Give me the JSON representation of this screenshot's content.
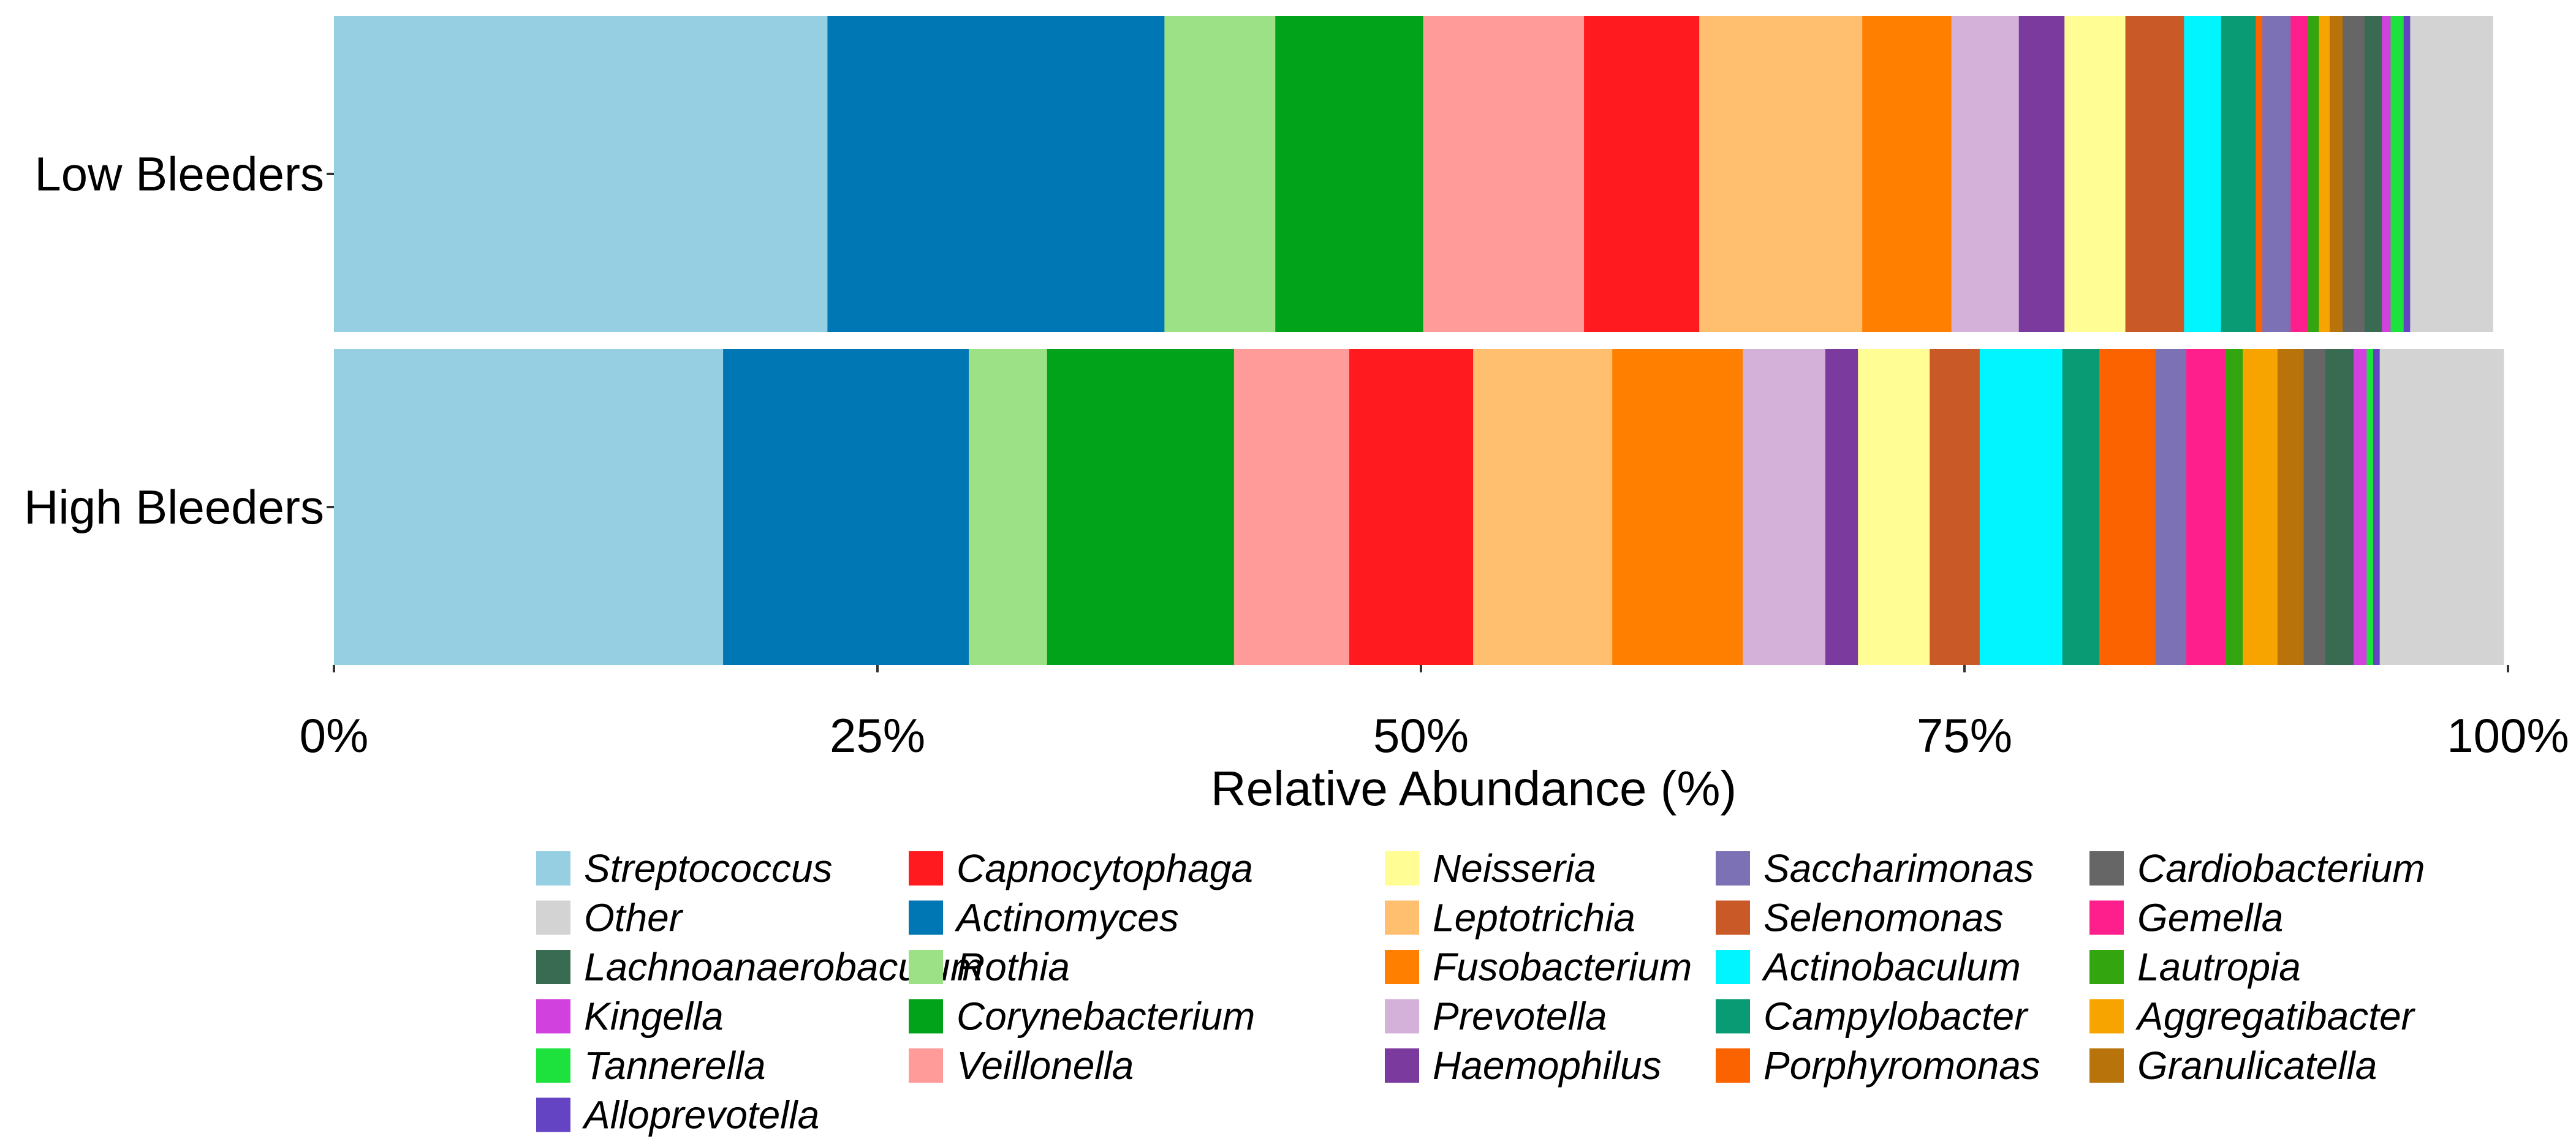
{
  "chart_data": {
    "type": "bar",
    "orientation": "horizontal",
    "stacked": true,
    "title": "",
    "xlabel": "Relative Abundance (%)",
    "ylabel": "",
    "xlim": [
      0,
      100
    ],
    "x_ticks": [
      "0%",
      "25%",
      "50%",
      "75%",
      "100%"
    ],
    "categories": [
      "Low Bleeders",
      "High Bleeders"
    ],
    "legend_position": "bottom",
    "series": [
      {
        "name": "Streptococcus",
        "color": "#97CFE2",
        "values": [
          22.7,
          17.9
        ]
      },
      {
        "name": "Capnocytophaga",
        "color": "#FF1A1F",
        "values": [
          5.3,
          5.7
        ]
      },
      {
        "name": "Neisseria",
        "color": "#FFFD93",
        "values": [
          2.8,
          3.3
        ]
      },
      {
        "name": "Saccharimonas",
        "color": "#7C71B5",
        "values": [
          1.3,
          1.4
        ]
      },
      {
        "name": "Cardiobacterium",
        "color": "#666666",
        "values": [
          1.0,
          1.0
        ]
      },
      {
        "name": "Other",
        "color": "#D3D3D3",
        "values": [
          3.8,
          5.7
        ]
      },
      {
        "name": "Actinomyces",
        "color": "#0077B5",
        "values": [
          15.5,
          11.3
        ]
      },
      {
        "name": "Leptotrichia",
        "color": "#FFBF6F",
        "values": [
          7.5,
          6.4
        ]
      },
      {
        "name": "Selenomonas",
        "color": "#C95A27",
        "values": [
          2.7,
          2.3
        ]
      },
      {
        "name": "Gemella",
        "color": "#FF1F8C",
        "values": [
          0.8,
          1.8
        ]
      },
      {
        "name": "Lachnoanaerobaculum",
        "color": "#386B52",
        "values": [
          0.8,
          1.3
        ]
      },
      {
        "name": "Rothia",
        "color": "#9DE186",
        "values": [
          5.1,
          3.6
        ]
      },
      {
        "name": "Fusobacterium",
        "color": "#FF7F00",
        "values": [
          4.1,
          6.0
        ]
      },
      {
        "name": "Actinobaculum",
        "color": "#00F5FF",
        "values": [
          1.7,
          3.8
        ]
      },
      {
        "name": "Lautropia",
        "color": "#33A60F",
        "values": [
          0.5,
          0.8
        ]
      },
      {
        "name": "Kingella",
        "color": "#D141DD",
        "values": [
          0.4,
          0.6
        ]
      },
      {
        "name": "Corynebacterium",
        "color": "#00A31A",
        "values": [
          6.8,
          8.6
        ]
      },
      {
        "name": "Prevotella",
        "color": "#D4B1D9",
        "values": [
          3.1,
          3.8
        ]
      },
      {
        "name": "Campylobacter",
        "color": "#099C74",
        "values": [
          1.6,
          1.7
        ]
      },
      {
        "name": "Aggregatibacter",
        "color": "#F7A400",
        "values": [
          0.5,
          1.6
        ]
      },
      {
        "name": "Tannerella",
        "color": "#1DE23D",
        "values": [
          0.6,
          0.3
        ]
      },
      {
        "name": "Veillonella",
        "color": "#FF9C9A",
        "values": [
          7.4,
          5.3
        ]
      },
      {
        "name": "Haemophilus",
        "color": "#7A3A9E",
        "values": [
          2.1,
          1.5
        ]
      },
      {
        "name": "Porphyromonas",
        "color": "#FA6300",
        "values": [
          0.3,
          2.6
        ]
      },
      {
        "name": "Granulicatella",
        "color": "#B8730B",
        "values": [
          0.6,
          1.2
        ]
      },
      {
        "name": "Alloprevotella",
        "color": "#6444C3",
        "values": [
          0.3,
          0.3
        ]
      }
    ],
    "stack_order": [
      "Streptococcus",
      "Actinomyces",
      "Rothia",
      "Corynebacterium",
      "Veillonella",
      "Capnocytophaga",
      "Leptotrichia",
      "Fusobacterium",
      "Prevotella",
      "Haemophilus",
      "Neisseria",
      "Selenomonas",
      "Actinobaculum",
      "Campylobacter",
      "Porphyromonas",
      "Saccharimonas",
      "Gemella",
      "Lautropia",
      "Aggregatibacter",
      "Granulicatella",
      "Cardiobacterium",
      "Lachnoanaerobaculum",
      "Kingella",
      "Tannerella",
      "Alloprevotella",
      "Other"
    ]
  }
}
